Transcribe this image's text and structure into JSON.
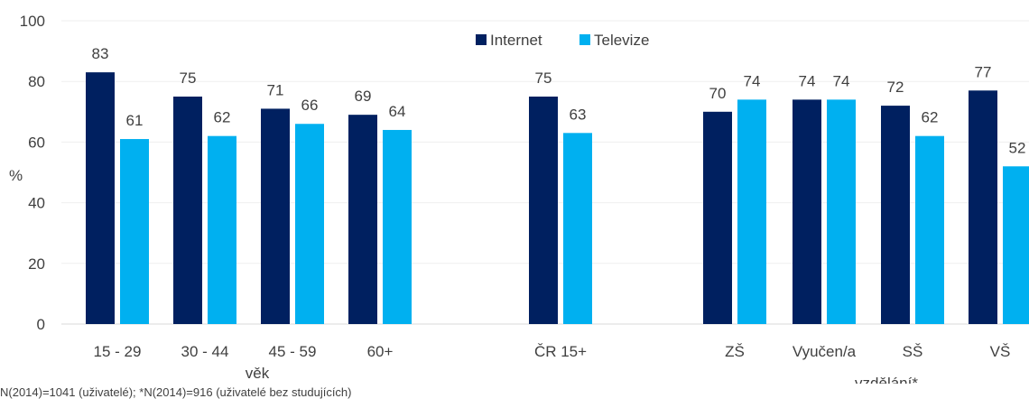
{
  "chart_data": {
    "type": "bar",
    "ylabel": "%",
    "ylim": [
      0,
      100
    ],
    "yticks": [
      0,
      20,
      40,
      60,
      80,
      100
    ],
    "grid": true,
    "legend_position": "top-right",
    "categories": [
      "15 - 29",
      "30 - 44",
      "45 - 59",
      "60+",
      "ČR 15+",
      "ZŠ",
      "Vyučen/a",
      "SŠ",
      "VŠ"
    ],
    "series": [
      {
        "name": "Internet",
        "color": "#002060",
        "values": [
          83,
          75,
          71,
          69,
          75,
          70,
          74,
          72,
          77
        ]
      },
      {
        "name": "Televize",
        "color": "#00B0F0",
        "values": [
          61,
          62,
          66,
          64,
          63,
          74,
          74,
          62,
          52
        ]
      }
    ],
    "group_labels": [
      "věk",
      "vzdělání*"
    ]
  },
  "footnote": "N(2014)=1041 (uživatelé); *N(2014)=916 (uživatelé bez studujících)"
}
